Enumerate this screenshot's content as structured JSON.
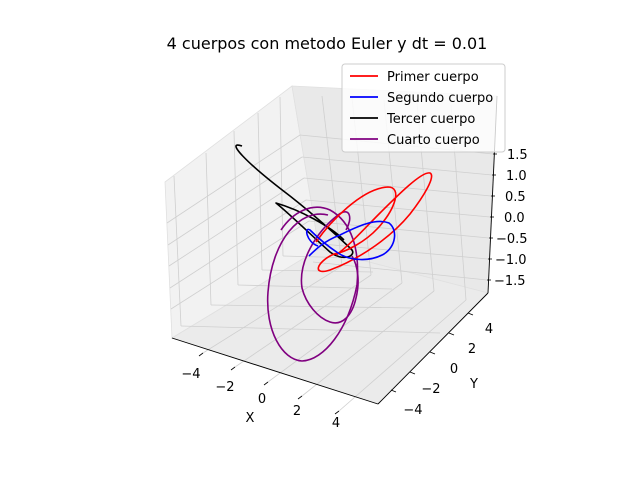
{
  "chart_data": {
    "type": "line",
    "projection": "3d",
    "title": "4 cuerpos con metodo Euler y dt = 0.01",
    "xlabel": "X",
    "ylabel": "Y",
    "zlabel": "",
    "xlim": [
      -5.5,
      5.5
    ],
    "ylim": [
      -5.5,
      5.5
    ],
    "zlim": [
      -1.8,
      1.8
    ],
    "x_ticks": [
      "−4",
      "−2",
      "0",
      "2",
      "4"
    ],
    "y_ticks": [
      "−4",
      "−2",
      "0",
      "2",
      "4"
    ],
    "z_ticks": [
      "1.5",
      "1.0",
      "0.5",
      "0.0",
      "−0.5",
      "−1.0",
      "−1.5"
    ],
    "grid": true,
    "legend_position": "top-right",
    "series": [
      {
        "name": "Primer cuerpo",
        "color": "#ff0000"
      },
      {
        "name": "Segundo cuerpo",
        "color": "#0000ff"
      },
      {
        "name": "Tercer cuerpo",
        "color": "#000000"
      },
      {
        "name": "Cuarto cuerpo",
        "color": "#800080"
      }
    ]
  }
}
